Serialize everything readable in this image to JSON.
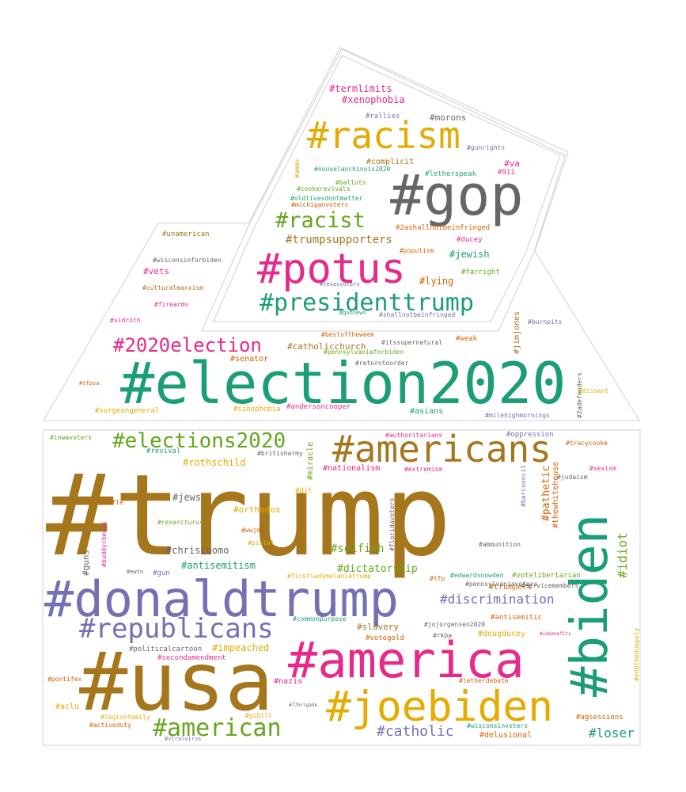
{
  "colors": {
    "goldbrown": "#a6761d",
    "purple": "#7570b3",
    "magenta": "#e7298a",
    "teal": "#1b9e77",
    "gold": "#e6ab02",
    "green": "#66a61e",
    "gray": "#666666",
    "orange": "#d95f02"
  },
  "words": [
    {
      "text": "#trump",
      "color": "goldbrown"
    },
    {
      "text": "#donaldtrump",
      "color": "purple"
    },
    {
      "text": "#usa",
      "color": "goldbrown"
    },
    {
      "text": "#america",
      "color": "magenta"
    },
    {
      "text": "#biden",
      "color": "teal"
    },
    {
      "text": "#election2020",
      "color": "teal"
    },
    {
      "text": "#gop",
      "color": "gray"
    },
    {
      "text": "#joebiden",
      "color": "gold"
    },
    {
      "text": "#americans",
      "color": "goldbrown"
    },
    {
      "text": "#racism",
      "color": "gold"
    },
    {
      "text": "#potus",
      "color": "magenta"
    },
    {
      "text": "#republicans",
      "color": "purple"
    },
    {
      "text": "#presidenttrump",
      "color": "teal"
    },
    {
      "text": "#american",
      "color": "green"
    },
    {
      "text": "#elections2020",
      "color": "green"
    },
    {
      "text": "#2020election",
      "color": "magenta"
    },
    {
      "text": "#racist",
      "color": "green"
    },
    {
      "text": "#catholic",
      "color": "purple"
    },
    {
      "text": "#discrimination",
      "color": "purple"
    },
    {
      "text": "#idiot",
      "color": "green"
    },
    {
      "text": "#loser",
      "color": "teal"
    },
    {
      "text": "#pathetic",
      "color": "orange"
    },
    {
      "text": "#trumpsupporters",
      "color": "goldbrown"
    },
    {
      "text": "#selfish",
      "color": "green"
    },
    {
      "text": "#dictatorship",
      "color": "green"
    },
    {
      "text": "#rothschild",
      "color": "gold"
    },
    {
      "text": "#antisemitism",
      "color": "teal"
    },
    {
      "text": "#chriscuomo",
      "color": "gray"
    },
    {
      "text": "#jews",
      "color": "gray"
    },
    {
      "text": "#impeached",
      "color": "gold"
    },
    {
      "text": "#slavery",
      "color": "goldbrown"
    },
    {
      "text": "#termlimits",
      "color": "magenta"
    },
    {
      "text": "#xenophobia",
      "color": "magenta"
    },
    {
      "text": "#morons",
      "color": "gray"
    },
    {
      "text": "#jewish",
      "color": "teal"
    },
    {
      "text": "#lying",
      "color": "orange"
    },
    {
      "text": "#catholicchurch",
      "color": "goldbrown"
    },
    {
      "text": "#guns",
      "color": "gray"
    },
    {
      "text": "#orthodox",
      "color": "gold"
    },
    {
      "text": "#complicit",
      "color": "goldbrown"
    },
    {
      "text": "#va",
      "color": "magenta"
    },
    {
      "text": "#vets",
      "color": "magenta"
    },
    {
      "text": "#senator",
      "color": "orange"
    },
    {
      "text": "#asians",
      "color": "teal"
    },
    {
      "text": "#miracle",
      "color": "green"
    },
    {
      "text": "#trumpers",
      "color": "orange"
    },
    {
      "text": "#delusional",
      "color": "orange"
    },
    {
      "text": "#nazis",
      "color": "magenta"
    },
    {
      "text": "#aclu",
      "color": "gold"
    },
    {
      "text": "#dougducey",
      "color": "gold"
    },
    {
      "text": "#nationalism",
      "color": "magenta"
    },
    {
      "text": "#thewhitehouse",
      "color": "orange"
    },
    {
      "text": "#jimjones",
      "color": "goldbrown"
    },
    {
      "text": "#rallies",
      "color": "purple"
    },
    {
      "text": "#gunrights",
      "color": "purple"
    },
    {
      "text": "#911",
      "color": "magenta"
    },
    {
      "text": "#letherspeak",
      "color": "teal"
    },
    {
      "text": "#nouvelanchinois2020",
      "color": "teal"
    },
    {
      "text": "#ammo",
      "color": "gold"
    },
    {
      "text": "#ballots",
      "color": "green"
    },
    {
      "text": "#cookerevivals",
      "color": "green"
    },
    {
      "text": "#oldlivesdontmatter",
      "color": "teal"
    },
    {
      "text": "#michiganvoters",
      "color": "orange"
    },
    {
      "text": "#2ashallnotbeinfringed",
      "color": "orange"
    },
    {
      "text": "#ducey",
      "color": "magenta"
    },
    {
      "text": "#populism",
      "color": "orange"
    },
    {
      "text": "#farright",
      "color": "green"
    },
    {
      "text": "#texasvoters",
      "color": "purple"
    },
    {
      "text": "#gunnews",
      "color": "teal"
    },
    {
      "text": "#shallnotbeinfringed",
      "color": "purple"
    },
    {
      "text": "#unamerican",
      "color": "goldbrown"
    },
    {
      "text": "#wisconsinforbiden",
      "color": "gray"
    },
    {
      "text": "#culturalmarxism",
      "color": "goldbrown"
    },
    {
      "text": "#firearms",
      "color": "magenta"
    },
    {
      "text": "#sidroth",
      "color": "magenta"
    },
    {
      "text": "#burnpits",
      "color": "purple"
    },
    {
      "text": "#bestoftheweek",
      "color": "orange"
    },
    {
      "text": "#itssupernatural",
      "color": "gray"
    },
    {
      "text": "#weak",
      "color": "orange"
    },
    {
      "text": "#pennsylvaniaforbiden",
      "color": "green"
    },
    {
      "text": "#returntoorder",
      "color": "gray"
    },
    {
      "text": "#tfpsa",
      "color": "orange"
    },
    {
      "text": "#surgeongeneral",
      "color": "gold"
    },
    {
      "text": "#sinophobia",
      "color": "gold"
    },
    {
      "text": "#andersoncooper",
      "color": "magenta"
    },
    {
      "text": "#milehighmornings",
      "color": "purple"
    },
    {
      "text": "#2adefenders",
      "color": "gray"
    },
    {
      "text": "#dissent",
      "color": "gold"
    },
    {
      "text": "#iowavoters",
      "color": "green"
    },
    {
      "text": "#revival",
      "color": "teal"
    },
    {
      "text": "#britisharmy",
      "color": "gray"
    },
    {
      "text": "#authoritarians",
      "color": "magenta"
    },
    {
      "text": "#oppression",
      "color": "purple"
    },
    {
      "text": "#tracycooke",
      "color": "orange"
    },
    {
      "text": "#sexism",
      "color": "magenta"
    },
    {
      "text": "#extremism",
      "color": "magenta"
    },
    {
      "text": "#judaism",
      "color": "gray"
    },
    {
      "text": "#barcouncil",
      "color": "purple"
    },
    {
      "text": "#rifle",
      "color": "orange"
    },
    {
      "text": "#djt",
      "color": "gold"
    },
    {
      "text": "#buddychecks",
      "color": "magenta"
    },
    {
      "text": "#rexarcturus",
      "color": "green"
    },
    {
      "text": "#wwjd",
      "color": "orange"
    },
    {
      "text": "#pistol",
      "color": "gold"
    },
    {
      "text": "#floridavoters",
      "color": "gray"
    },
    {
      "text": "#ammunition",
      "color": "gray"
    },
    {
      "text": "#ewtn",
      "color": "gray"
    },
    {
      "text": "#gun",
      "color": "purple"
    },
    {
      "text": "#firstladymelaniatrump",
      "color": "gold"
    },
    {
      "text": "#tfp",
      "color": "orange"
    },
    {
      "text": "#edwardsnowden",
      "color": "teal"
    },
    {
      "text": "#votelibertarian",
      "color": "green"
    },
    {
      "text": "#pennsylvaniavoters",
      "color": "gray"
    },
    {
      "text": "#servicemembers",
      "color": "gray"
    },
    {
      "text": "#commonpurpose",
      "color": "teal"
    },
    {
      "text": "#antisemitic",
      "color": "orange"
    },
    {
      "text": "#jojorgensen2020",
      "color": "gray"
    },
    {
      "text": "#votegold",
      "color": "orange"
    },
    {
      "text": "#rkba",
      "color": "gray"
    },
    {
      "text": "#vabenefits",
      "color": "magenta"
    },
    {
      "text": "#endtheduopoly",
      "color": "gold"
    },
    {
      "text": "#politicalcartoon",
      "color": "gray"
    },
    {
      "text": "#secondamendment",
      "color": "magenta"
    },
    {
      "text": "#pontifex",
      "color": "orange"
    },
    {
      "text": "#letherdebate",
      "color": "orange"
    },
    {
      "text": "#77brigade",
      "color": "gray"
    },
    {
      "text": "#legionfamily",
      "color": "gold"
    },
    {
      "text": "#gibill",
      "color": "gold"
    },
    {
      "text": "#activeduty",
      "color": "orange"
    },
    {
      "text": "#viralvirus",
      "color": "purple"
    },
    {
      "text": "#wisconsinvoters",
      "color": "teal"
    },
    {
      "text": "#agsessions",
      "color": "orange"
    }
  ]
}
